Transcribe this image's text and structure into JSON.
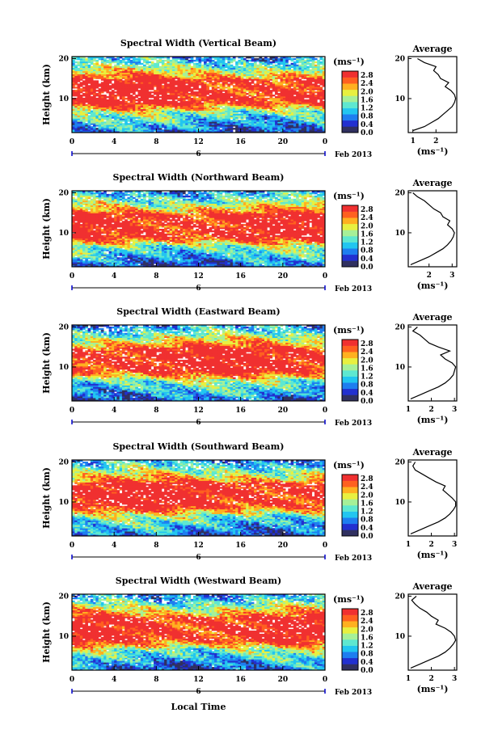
{
  "figure": {
    "xlabel": "Local Time",
    "date_label": "Feb 2013",
    "day_label": "6"
  },
  "colorbar": {
    "unit": "(ms⁻¹)",
    "ticks": [
      "2.8",
      "2.4",
      "2.0",
      "1.6",
      "1.2",
      "0.8",
      "0.4",
      "0.0"
    ],
    "range": [
      0.0,
      3.0
    ],
    "colors": [
      "#303060",
      "#2230d0",
      "#1e7ef0",
      "#22c6f0",
      "#5ee8d0",
      "#a6f098",
      "#e8f040",
      "#ffb020",
      "#ff6020",
      "#f03030"
    ]
  },
  "chart_data": [
    {
      "type": "heatmap",
      "title": "Spectral Width (Vertical Beam)",
      "ylabel": "Height (km)",
      "xlim": [
        0,
        24
      ],
      "ylim": [
        1.5,
        20.5
      ],
      "xticks": [
        "0",
        "4",
        "8",
        "12",
        "16",
        "20",
        "0"
      ],
      "yticks": [
        "20",
        "10"
      ],
      "values_description_units": "ms⁻¹",
      "profile": {
        "title": "Average",
        "xlabel": "(ms⁻¹)",
        "xticks": [
          "1",
          "2"
        ],
        "xlim": [
          0.8,
          2.9
        ],
        "height": [
          2,
          3,
          4,
          5,
          6,
          7,
          8,
          9,
          10,
          11,
          12,
          13,
          14,
          15,
          16,
          17,
          18,
          19,
          20
        ],
        "value": [
          1.0,
          1.5,
          1.8,
          2.1,
          2.3,
          2.5,
          2.7,
          2.8,
          2.85,
          2.8,
          2.65,
          2.4,
          2.55,
          2.2,
          2.1,
          1.9,
          2.0,
          1.5,
          1.2
        ]
      }
    },
    {
      "type": "heatmap",
      "title": "Spectral Width (Northward Beam)",
      "ylabel": "Height (km)",
      "xlim": [
        0,
        24
      ],
      "ylim": [
        1.5,
        20.5
      ],
      "xticks": [
        "0",
        "4",
        "8",
        "12",
        "16",
        "20",
        "0"
      ],
      "yticks": [
        "20",
        "10"
      ],
      "values_description_units": "ms⁻¹",
      "profile": {
        "title": "Average",
        "xlabel": "(ms⁻¹)",
        "xticks": [
          "2",
          "3"
        ],
        "xlim": [
          1.1,
          3.2
        ],
        "height": [
          2,
          3,
          4,
          5,
          6,
          7,
          8,
          9,
          10,
          11,
          12,
          13,
          14,
          15,
          16,
          17,
          18,
          19,
          20
        ],
        "value": [
          1.2,
          1.6,
          2.0,
          2.3,
          2.6,
          2.8,
          2.95,
          3.05,
          3.1,
          3.0,
          2.8,
          2.9,
          2.6,
          2.5,
          2.2,
          2.0,
          1.8,
          1.5,
          1.3
        ]
      }
    },
    {
      "type": "heatmap",
      "title": "Spectral Width (Eastward Beam)",
      "ylabel": "Height (km)",
      "xlim": [
        0,
        24
      ],
      "ylim": [
        1.5,
        20.5
      ],
      "xticks": [
        "0",
        "4",
        "8",
        "12",
        "16",
        "20",
        "0"
      ],
      "yticks": [
        "20",
        "10"
      ],
      "values_description_units": "ms⁻¹",
      "profile": {
        "title": "Average",
        "xlabel": "(ms⁻¹)",
        "xticks": [
          "1",
          "2",
          "3"
        ],
        "xlim": [
          1.0,
          3.1
        ],
        "height": [
          2,
          3,
          4,
          5,
          6,
          7,
          8,
          9,
          10,
          11,
          12,
          13,
          14,
          15,
          16,
          17,
          18,
          19,
          20
        ],
        "value": [
          1.1,
          1.5,
          1.9,
          2.3,
          2.6,
          2.8,
          2.95,
          3.0,
          3.05,
          2.9,
          2.6,
          2.4,
          2.8,
          2.3,
          1.9,
          1.7,
          1.5,
          1.2,
          1.4
        ]
      }
    },
    {
      "type": "heatmap",
      "title": "Spectral Width (Southward Beam)",
      "ylabel": "Height (km)",
      "xlim": [
        0,
        24
      ],
      "ylim": [
        1.5,
        20.5
      ],
      "xticks": [
        "0",
        "4",
        "8",
        "12",
        "16",
        "20",
        "0"
      ],
      "yticks": [
        "20",
        "10"
      ],
      "values_description_units": "ms⁻¹",
      "profile": {
        "title": "Average",
        "xlabel": "(ms⁻¹)",
        "xticks": [
          "1",
          "2",
          "3"
        ],
        "xlim": [
          1.0,
          3.1
        ],
        "height": [
          2,
          3,
          4,
          5,
          6,
          7,
          8,
          9,
          10,
          11,
          12,
          13,
          14,
          15,
          16,
          17,
          18,
          19,
          20
        ],
        "value": [
          1.1,
          1.5,
          1.9,
          2.3,
          2.6,
          2.8,
          2.95,
          3.05,
          3.05,
          2.9,
          2.7,
          2.5,
          2.6,
          2.2,
          1.9,
          1.6,
          1.3,
          1.2,
          1.3
        ]
      }
    },
    {
      "type": "heatmap",
      "title": "Spectral Width (Westward Beam)",
      "ylabel": "Height (km)",
      "xlim": [
        0,
        24
      ],
      "ylim": [
        1.5,
        20.5
      ],
      "xticks": [
        "0",
        "4",
        "8",
        "12",
        "16",
        "20",
        "0"
      ],
      "yticks": [
        "20",
        "10"
      ],
      "values_description_units": "ms⁻¹",
      "profile": {
        "title": "Average",
        "xlabel": "(ms⁻¹)",
        "xticks": [
          "1",
          "2",
          "3"
        ],
        "xlim": [
          1.0,
          3.1
        ],
        "height": [
          2,
          3,
          4,
          5,
          6,
          7,
          8,
          9,
          10,
          11,
          12,
          13,
          14,
          15,
          16,
          17,
          18,
          19,
          20
        ],
        "value": [
          1.1,
          1.5,
          1.9,
          2.3,
          2.6,
          2.8,
          2.95,
          3.05,
          3.0,
          2.85,
          2.6,
          2.2,
          2.3,
          2.0,
          1.8,
          1.5,
          1.3,
          1.15,
          1.35
        ]
      }
    }
  ]
}
